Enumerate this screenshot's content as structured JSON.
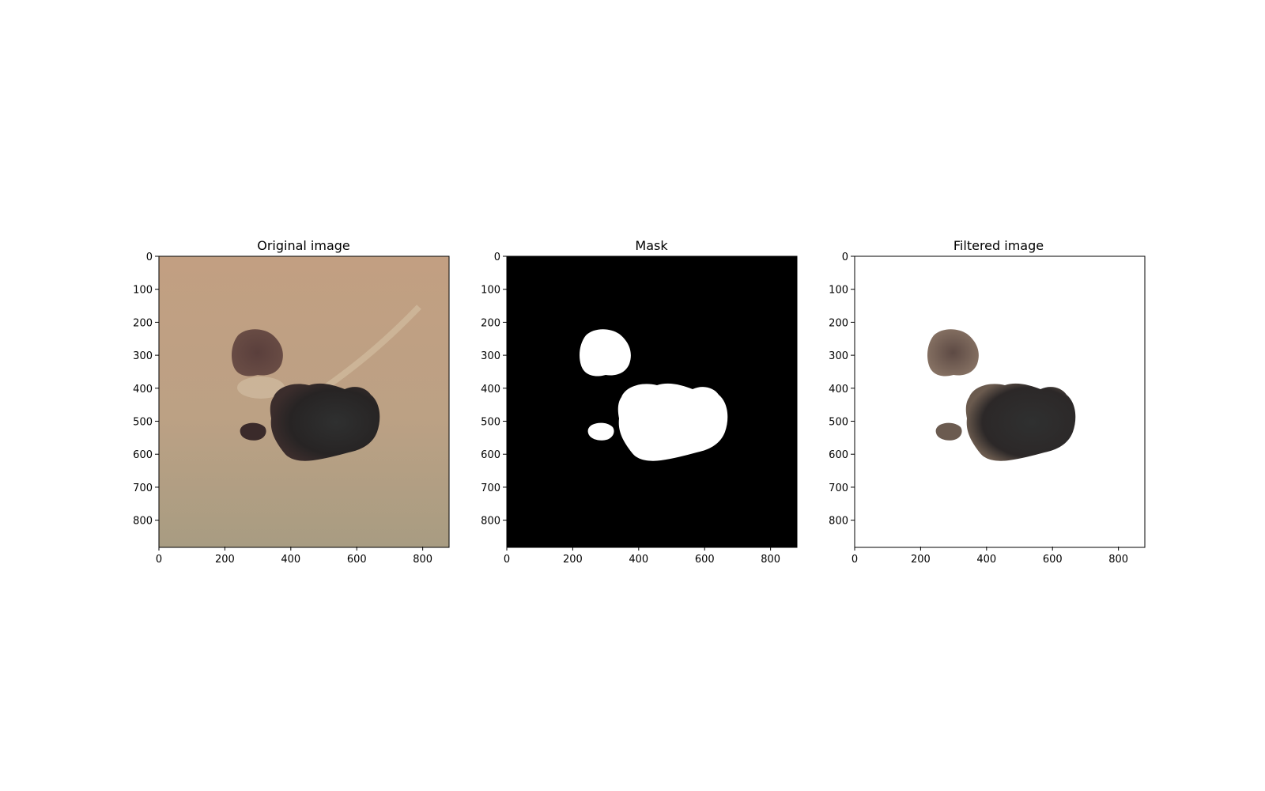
{
  "figure": {
    "panels": [
      {
        "id": "original",
        "title": "Original image",
        "content": "skin-lesion-photo",
        "x_ticks": [
          "0",
          "200",
          "400",
          "600",
          "800"
        ],
        "y_ticks": [
          "0",
          "100",
          "200",
          "300",
          "400",
          "500",
          "600",
          "700",
          "800"
        ]
      },
      {
        "id": "mask",
        "title": "Mask",
        "content": "binary-segmentation-mask",
        "x_ticks": [
          "0",
          "200",
          "400",
          "600",
          "800"
        ],
        "y_ticks": [
          "0",
          "100",
          "200",
          "300",
          "400",
          "500",
          "600",
          "700",
          "800"
        ]
      },
      {
        "id": "filtered",
        "title": "Filtered image",
        "content": "masked-lesion-photo",
        "x_ticks": [
          "0",
          "200",
          "400",
          "600",
          "800"
        ],
        "y_ticks": [
          "0",
          "100",
          "200",
          "300",
          "400",
          "500",
          "600",
          "700",
          "800"
        ]
      }
    ],
    "colors": {
      "skin": "#bda286",
      "lesion_dark": "#2b2626",
      "lesion_brown": "#4a3530",
      "mask_background": "#000000",
      "mask_foreground": "#ffffff"
    }
  }
}
